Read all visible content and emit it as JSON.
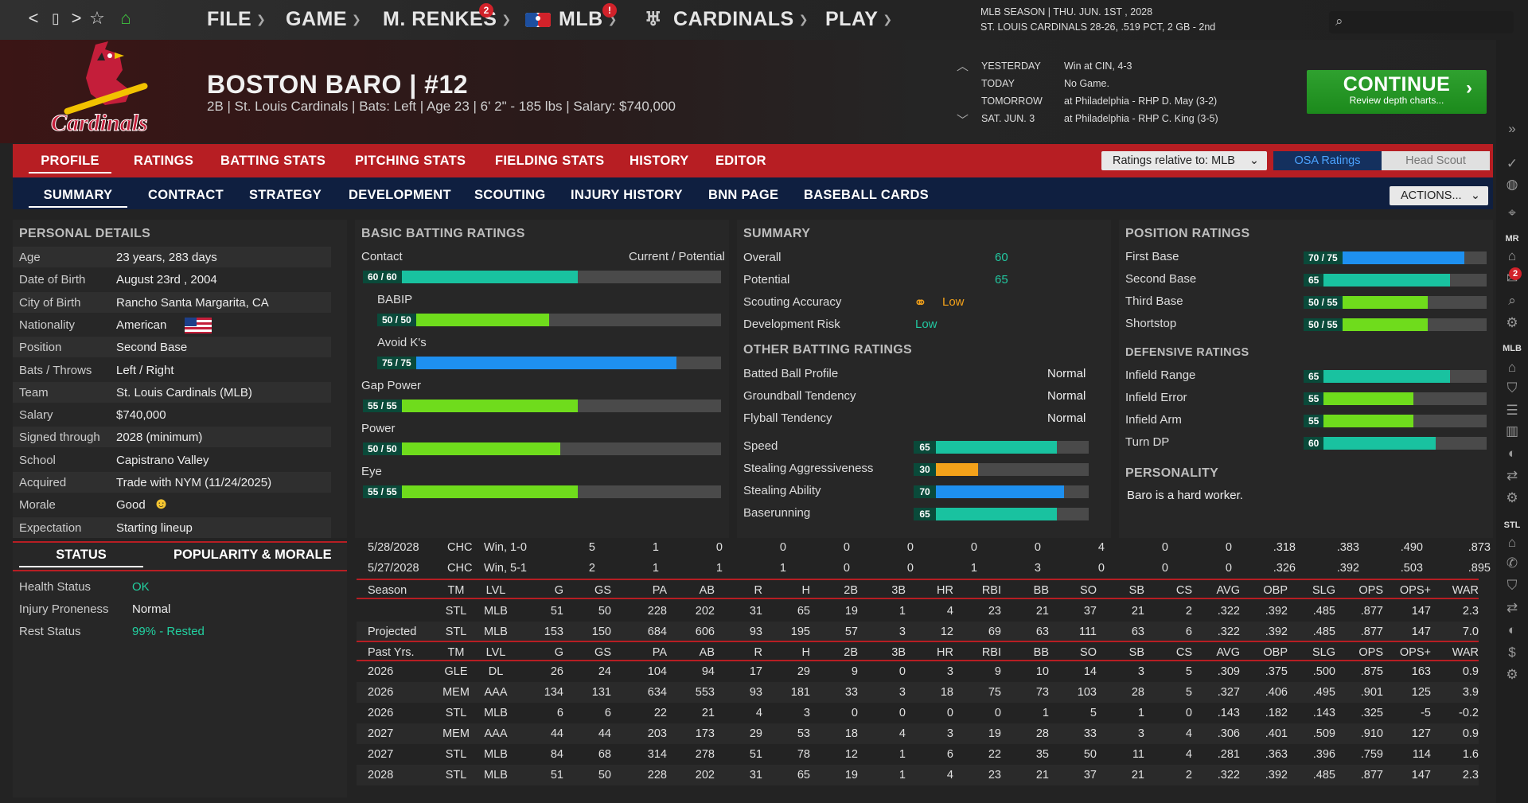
{
  "nav": {
    "back": "<",
    "page": "▯",
    "forward": ">",
    "star": "☆",
    "home": "⌂"
  },
  "menu": [
    {
      "label": "FILE"
    },
    {
      "label": "GAME"
    },
    {
      "label": "M. RENKES",
      "badge": "2"
    },
    {
      "label": "MLB",
      "badge": "!"
    },
    {
      "label": "CARDINALS"
    },
    {
      "label": "PLAY"
    }
  ],
  "season": {
    "line1": "MLB SEASON  |  THU. JUN. 1ST , 2028",
    "line2": "ST. LOUIS CARDINALS  28-26, .519 PCT, 2 GB - 2nd"
  },
  "player": {
    "name": "BOSTON BARO  |  #12",
    "info": "2B | St. Louis Cardinals  |  Bats: Left  |  Age 23  |  6' 2\" - 185 lbs  |  Salary: $740,000"
  },
  "schedule": [
    {
      "day": "YESTERDAY",
      "text": "Win at CIN, 4-3"
    },
    {
      "day": "TODAY",
      "text": "No Game."
    },
    {
      "day": "TOMORROW",
      "text": "at Philadelphia - RHP D. May (3-2)"
    },
    {
      "day": "SAT. JUN. 3",
      "text": "at Philadelphia - RHP C. King (3-5)"
    }
  ],
  "continue": {
    "title": "CONTINUE",
    "sub": "Review depth charts..."
  },
  "tabs1": [
    "PROFILE",
    "RATINGS",
    "BATTING STATS",
    "PITCHING STATS",
    "FIELDING STATS",
    "HISTORY",
    "EDITOR"
  ],
  "relative": "Ratings relative to: MLB",
  "osa": "OSA Ratings",
  "headscout": "Head Scout",
  "tabs2": [
    "SUMMARY",
    "CONTRACT",
    "STRATEGY",
    "DEVELOPMENT",
    "SCOUTING",
    "INJURY HISTORY",
    "BNN PAGE",
    "BASEBALL CARDS"
  ],
  "actions": "ACTIONS...",
  "personal": {
    "title": "PERSONAL DETAILS",
    "rows": [
      {
        "k": "Age",
        "v": "23 years, 283 days"
      },
      {
        "k": "Date of Birth",
        "v": "August 23rd , 2004"
      },
      {
        "k": "City of Birth",
        "v": "Rancho Santa Margarita, CA"
      },
      {
        "k": "Nationality",
        "v": "American"
      },
      {
        "k": "Position",
        "v": "Second Base"
      },
      {
        "k": "Bats / Throws",
        "v": "Left / Right"
      },
      {
        "k": "Team",
        "v": "St. Louis Cardinals (MLB)"
      },
      {
        "k": "Salary",
        "v": "$740,000"
      },
      {
        "k": "Signed through",
        "v": "2028 (minimum)"
      },
      {
        "k": "School",
        "v": "Capistrano Valley"
      },
      {
        "k": "Acquired",
        "v": "Trade with NYM (11/24/2025)"
      },
      {
        "k": "Morale",
        "v": "Good"
      },
      {
        "k": "Expectation",
        "v": "Starting lineup"
      }
    ]
  },
  "batting": {
    "title": "BASIC BATTING RATINGS",
    "curpot": "Current / Potential",
    "items": [
      {
        "name": "Contact",
        "label": "60 / 60",
        "pct": 0.6,
        "color": "#19c2a0"
      },
      {
        "name": "BABIP",
        "label": "50 / 50",
        "pct": 0.5,
        "color": "#6fdc1c"
      },
      {
        "name": "Avoid K's",
        "label": "75 / 75",
        "pct": 0.87,
        "color": "#1e90f0"
      },
      {
        "name": "Gap Power",
        "label": "55 / 55",
        "pct": 0.6,
        "color": "#6fdc1c"
      },
      {
        "name": "Power",
        "label": "50 / 50",
        "pct": 0.55,
        "color": "#6fdc1c"
      },
      {
        "name": "Eye",
        "label": "55 / 55",
        "pct": 0.6,
        "color": "#6fdc1c"
      }
    ]
  },
  "summary": {
    "title": "SUMMARY",
    "overall_k": "Overall",
    "overall": "60",
    "potential_k": "Potential",
    "potential": "65",
    "scout_k": "Scouting Accuracy",
    "scout": "Low",
    "risk_k": "Development Risk",
    "risk": "Low",
    "other_title": "OTHER BATTING RATINGS",
    "other": [
      {
        "k": "Batted Ball Profile",
        "v": "Normal"
      },
      {
        "k": "Groundball Tendency",
        "v": "Normal"
      },
      {
        "k": "Flyball Tendency",
        "v": "Normal"
      }
    ],
    "run": [
      {
        "k": "Speed",
        "v": "65",
        "pct": 0.82,
        "color": "#19c2a0"
      },
      {
        "k": "Stealing Aggressiveness",
        "v": "30",
        "pct": 0.37,
        "color": "#f4a21a"
      },
      {
        "k": "Stealing Ability",
        "v": "70",
        "pct": 0.86,
        "color": "#1e90f0"
      },
      {
        "k": "Baserunning",
        "v": "65",
        "pct": 0.82,
        "color": "#19c2a0"
      }
    ]
  },
  "position": {
    "title": "POSITION RATINGS",
    "items": [
      {
        "k": "First Base",
        "v": "70 / 75",
        "pct": 0.88,
        "color": "#1e90f0"
      },
      {
        "k": "Second Base",
        "v": "65",
        "pct": 0.8,
        "color": "#19c2a0"
      },
      {
        "k": "Third Base",
        "v": "50 / 55",
        "pct": 0.68,
        "color": "#6fdc1c"
      },
      {
        "k": "Shortstop",
        "v": "50 / 55",
        "pct": 0.68,
        "color": "#6fdc1c"
      }
    ],
    "def_title": "DEFENSIVE RATINGS",
    "def": [
      {
        "k": "Infield Range",
        "v": "65",
        "pct": 0.8,
        "color": "#19c2a0"
      },
      {
        "k": "Infield Error",
        "v": "55",
        "pct": 0.6,
        "color": "#6fdc1c"
      },
      {
        "k": "Infield Arm",
        "v": "55",
        "pct": 0.6,
        "color": "#6fdc1c"
      },
      {
        "k": "Turn DP",
        "v": "60",
        "pct": 0.72,
        "color": "#19c2a0"
      }
    ],
    "pers_title": "PERSONALITY",
    "pers": "Baro is a hard worker."
  },
  "status": {
    "tab1": "STATUS",
    "tab2": "POPULARITY & MORALE",
    "rows": [
      {
        "k": "Health Status",
        "v": "OK",
        "color": "#22d0a0"
      },
      {
        "k": "Injury Proneness",
        "v": "Normal",
        "color": "#eee"
      },
      {
        "k": "Rest Status",
        "v": "99% - Rested",
        "color": "#22d0a0"
      }
    ]
  },
  "stats": {
    "recent": [
      [
        "5/28/2028",
        "CHC",
        "Win, 1-0",
        "5",
        "1",
        "0",
        "0",
        "0",
        "0",
        "0",
        "0",
        "4",
        "0",
        "0",
        ".318",
        ".383",
        ".490",
        ".873",
        "",
        ""
      ],
      [
        "5/27/2028",
        "CHC",
        "Win, 5-1",
        "2",
        "1",
        "1",
        "1",
        "0",
        "0",
        "1",
        "3",
        "0",
        "0",
        "0",
        ".326",
        ".392",
        ".503",
        ".895",
        "",
        ""
      ]
    ],
    "header1": [
      "Season",
      "TM",
      "LVL",
      "G",
      "GS",
      "PA",
      "AB",
      "R",
      "H",
      "2B",
      "3B",
      "HR",
      "RBI",
      "BB",
      "SO",
      "SB",
      "CS",
      "AVG",
      "OBP",
      "SLG",
      "OPS",
      "OPS+",
      "WAR"
    ],
    "season": [
      [
        "",
        "STL",
        "MLB",
        "51",
        "50",
        "228",
        "202",
        "31",
        "65",
        "19",
        "1",
        "4",
        "23",
        "21",
        "37",
        "21",
        "2",
        ".322",
        ".392",
        ".485",
        ".877",
        "147",
        "2.3"
      ],
      [
        "Projected",
        "STL",
        "MLB",
        "153",
        "150",
        "684",
        "606",
        "93",
        "195",
        "57",
        "3",
        "12",
        "69",
        "63",
        "111",
        "63",
        "6",
        ".322",
        ".392",
        ".485",
        ".877",
        "147",
        "7.0"
      ]
    ],
    "header2": [
      "Past Yrs.",
      "TM",
      "LVL",
      "G",
      "GS",
      "PA",
      "AB",
      "R",
      "H",
      "2B",
      "3B",
      "HR",
      "RBI",
      "BB",
      "SO",
      "SB",
      "CS",
      "AVG",
      "OBP",
      "SLG",
      "OPS",
      "OPS+",
      "WAR"
    ],
    "past": [
      [
        "2026",
        "GLE",
        "DL",
        "26",
        "24",
        "104",
        "94",
        "17",
        "29",
        "9",
        "0",
        "3",
        "9",
        "10",
        "14",
        "3",
        "5",
        ".309",
        ".375",
        ".500",
        ".875",
        "163",
        "0.9"
      ],
      [
        "2026",
        "MEM",
        "AAA",
        "134",
        "131",
        "634",
        "553",
        "93",
        "181",
        "33",
        "3",
        "18",
        "75",
        "73",
        "103",
        "28",
        "5",
        ".327",
        ".406",
        ".495",
        ".901",
        "125",
        "3.9"
      ],
      [
        "2026",
        "STL",
        "MLB",
        "6",
        "6",
        "22",
        "21",
        "4",
        "3",
        "0",
        "0",
        "0",
        "0",
        "1",
        "5",
        "1",
        "0",
        ".143",
        ".182",
        ".143",
        ".325",
        "-5",
        "-0.2"
      ],
      [
        "2027",
        "MEM",
        "AAA",
        "44",
        "44",
        "203",
        "173",
        "29",
        "53",
        "18",
        "4",
        "3",
        "19",
        "28",
        "33",
        "3",
        "4",
        ".306",
        ".401",
        ".509",
        ".910",
        "127",
        "0.9"
      ],
      [
        "2027",
        "STL",
        "MLB",
        "84",
        "68",
        "314",
        "278",
        "51",
        "78",
        "12",
        "1",
        "6",
        "22",
        "35",
        "50",
        "11",
        "4",
        ".281",
        ".363",
        ".396",
        ".759",
        "114",
        "1.6"
      ],
      [
        "2028",
        "STL",
        "MLB",
        "51",
        "50",
        "228",
        "202",
        "31",
        "65",
        "19",
        "1",
        "4",
        "23",
        "21",
        "37",
        "21",
        "2",
        ".322",
        ".392",
        ".485",
        ".877",
        "147",
        "2.3"
      ]
    ]
  },
  "rightbar": {
    "mr": "MR",
    "mlb": "MLB",
    "stl": "STL",
    "badge": "2"
  }
}
